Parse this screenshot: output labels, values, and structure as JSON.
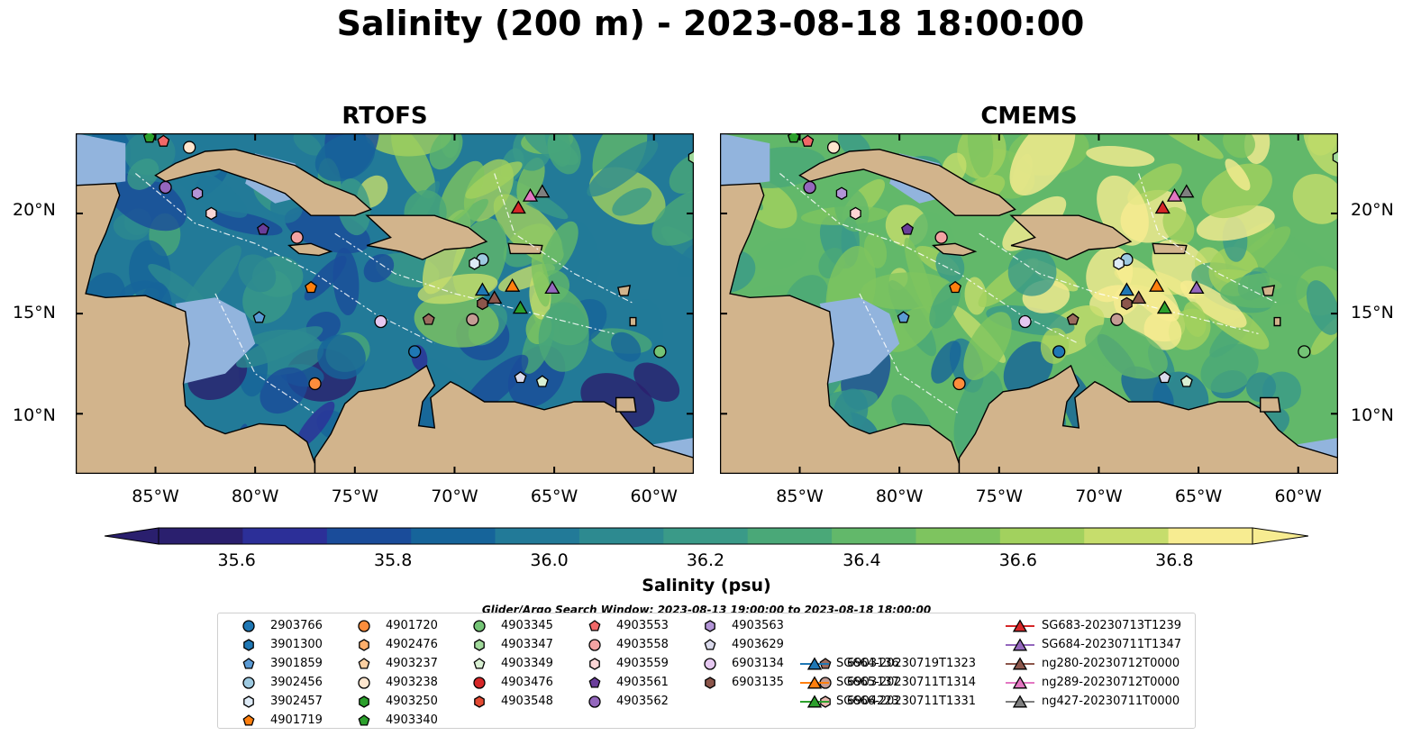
{
  "title": "Salinity (200 m) - 2023-08-18 18:00:00",
  "panels": [
    {
      "title": "RTOFS",
      "key": "rtofs"
    },
    {
      "title": "CMEMS",
      "key": "cmems"
    }
  ],
  "axes": {
    "lon_ticks": [
      "85°W",
      "80°W",
      "75°W",
      "70°W",
      "65°W",
      "60°W"
    ],
    "lat_ticks": [
      "20°N",
      "15°N",
      "10°N"
    ]
  },
  "chart_data": {
    "type": "map",
    "variable": "Salinity",
    "depth": "200 m",
    "datetime": "2023-08-18 18:00:00",
    "extent": {
      "lon": [
        -89,
        -58
      ],
      "lat": [
        7,
        24
      ]
    },
    "colorbar": {
      "label": "Salinity (psu)",
      "ticks": [
        "35.6",
        "35.8",
        "36.0",
        "36.2",
        "36.4",
        "36.6",
        "36.8"
      ],
      "range": [
        35.5,
        36.9
      ],
      "colors": [
        "#2a1f6e",
        "#2c2f98",
        "#1a4c9a",
        "#16649a",
        "#227a98",
        "#2d8a90",
        "#3a9a88",
        "#4aa878",
        "#62b86a",
        "#7ec45f",
        "#a2d15e",
        "#c6dd6c",
        "#f7ec91"
      ]
    },
    "search_window": "Glider/Argo Search Window: 2023-08-13 19:00:00 to 2023-08-18 18:00:00",
    "legend": [
      {
        "label": "2903766",
        "marker": "circle",
        "color": "#1f77b4"
      },
      {
        "label": "3901300",
        "marker": "hexagon",
        "color": "#1f77b4"
      },
      {
        "label": "3901859",
        "marker": "pentagon",
        "color": "#5b9bd5"
      },
      {
        "label": "3902456",
        "marker": "circle",
        "color": "#9ecae1"
      },
      {
        "label": "3902457",
        "marker": "hexagon",
        "color": "#deebf7"
      },
      {
        "label": "4901719",
        "marker": "pentagon",
        "color": "#ff7f0e"
      },
      {
        "label": "4901720",
        "marker": "circle",
        "color": "#fd8d3c"
      },
      {
        "label": "4902476",
        "marker": "hexagon",
        "color": "#fdae6b"
      },
      {
        "label": "4903237",
        "marker": "pentagon",
        "color": "#fdd0a2"
      },
      {
        "label": "4903238",
        "marker": "circle",
        "color": "#fee6ce"
      },
      {
        "label": "4903250",
        "marker": "hexagon",
        "color": "#2ca02c"
      },
      {
        "label": "4903340",
        "marker": "pentagon",
        "color": "#2ca02c"
      },
      {
        "label": "4903345",
        "marker": "circle",
        "color": "#74c476"
      },
      {
        "label": "4903347",
        "marker": "hexagon",
        "color": "#a1d99b"
      },
      {
        "label": "4903349",
        "marker": "pentagon",
        "color": "#d9f0d3"
      },
      {
        "label": "4903476",
        "marker": "circle",
        "color": "#d62728"
      },
      {
        "label": "4903548",
        "marker": "hexagon",
        "color": "#e34a33"
      },
      {
        "label": "4903553",
        "marker": "pentagon",
        "color": "#f16868"
      },
      {
        "label": "4903558",
        "marker": "circle",
        "color": "#f4a3a3"
      },
      {
        "label": "4903559",
        "marker": "hexagon",
        "color": "#fcd5d5"
      },
      {
        "label": "4903561",
        "marker": "pentagon",
        "color": "#6a3d9a"
      },
      {
        "label": "4903562",
        "marker": "circle",
        "color": "#9467bd"
      },
      {
        "label": "4903563",
        "marker": "hexagon",
        "color": "#b294d6"
      },
      {
        "label": "4903629",
        "marker": "pentagon",
        "color": "#dadaeb"
      },
      {
        "label": "6903134",
        "marker": "circle",
        "color": "#e5c8f0"
      },
      {
        "label": "6903135",
        "marker": "hexagon",
        "color": "#8c564b"
      },
      {
        "label": "6903136",
        "marker": "pentagon",
        "color": "#9b6b5e"
      },
      {
        "label": "6903137",
        "marker": "circle",
        "color": "#c49c94"
      },
      {
        "label": "6904223",
        "marker": "hexagon",
        "color": "#e7b8ae"
      },
      {
        "label": "SG664-20230719T1323",
        "marker": "triangle-line",
        "color": "#1f77b4"
      },
      {
        "label": "SG665-20230711T1314",
        "marker": "triangle-line",
        "color": "#ff7f0e"
      },
      {
        "label": "SG666-20230711T1331",
        "marker": "triangle-line",
        "color": "#2ca02c"
      },
      {
        "label": "SG683-20230713T1239",
        "marker": "triangle-line",
        "color": "#d62728"
      },
      {
        "label": "SG684-20230711T1347",
        "marker": "triangle-line",
        "color": "#9467bd"
      },
      {
        "label": "ng280-20230712T0000",
        "marker": "triangle-line",
        "color": "#8c564b"
      },
      {
        "label": "ng289-20230712T0000",
        "marker": "triangle-line",
        "color": "#e377c2"
      },
      {
        "label": "ng427-20230711T0000",
        "marker": "triangle-line",
        "color": "#7f7f7f"
      }
    ],
    "platforms": [
      {
        "id": "4903340",
        "lon": -85.3,
        "lat": 23.8
      },
      {
        "id": "4903553",
        "lon": -84.6,
        "lat": 23.6
      },
      {
        "id": "4903238",
        "lon": -83.3,
        "lat": 23.3
      },
      {
        "id": "4903562",
        "lon": -84.5,
        "lat": 21.3
      },
      {
        "id": "4903563",
        "lon": -82.9,
        "lat": 21.0
      },
      {
        "id": "4903559",
        "lon": -82.2,
        "lat": 20.0
      },
      {
        "id": "4903561",
        "lon": -79.6,
        "lat": 19.2
      },
      {
        "id": "4903558",
        "lon": -77.9,
        "lat": 18.8
      },
      {
        "id": "4901719",
        "lon": -77.2,
        "lat": 16.3
      },
      {
        "id": "3901859",
        "lon": -79.8,
        "lat": 14.8
      },
      {
        "id": "6903134",
        "lon": -73.7,
        "lat": 14.6
      },
      {
        "id": "6903136",
        "lon": -71.3,
        "lat": 14.7
      },
      {
        "id": "6903137",
        "lon": -69.1,
        "lat": 14.7
      },
      {
        "id": "3902456",
        "lon": -68.6,
        "lat": 17.7
      },
      {
        "id": "3902457",
        "lon": -69.0,
        "lat": 17.5
      },
      {
        "id": "2903766",
        "lon": -72.0,
        "lat": 13.1
      },
      {
        "id": "4901720",
        "lon": -77.0,
        "lat": 11.5
      },
      {
        "id": "4903629",
        "lon": -66.7,
        "lat": 11.8
      },
      {
        "id": "4903349",
        "lon": -65.6,
        "lat": 11.6
      },
      {
        "id": "4903345",
        "lon": -59.7,
        "lat": 13.1
      },
      {
        "id": "4903347",
        "lon": -58.0,
        "lat": 22.8
      },
      {
        "id": "SG683-20230713T1239",
        "lon": -66.8,
        "lat": 20.3
      },
      {
        "id": "ng289-20230712T0000",
        "lon": -66.2,
        "lat": 20.9
      },
      {
        "id": "ng427-20230711T0000",
        "lon": -65.6,
        "lat": 21.1
      },
      {
        "id": "SG664-20230719T1323",
        "lon": -68.6,
        "lat": 16.2
      },
      {
        "id": "SG665-20230711T1314",
        "lon": -67.1,
        "lat": 16.4
      },
      {
        "id": "SG684-20230711T1347",
        "lon": -65.1,
        "lat": 16.3
      },
      {
        "id": "ng280-20230712T0000",
        "lon": -68.0,
        "lat": 15.8
      },
      {
        "id": "SG666-20230711T1331",
        "lon": -66.7,
        "lat": 15.3
      },
      {
        "id": "6903135",
        "lon": -68.6,
        "lat": 15.5
      }
    ]
  }
}
